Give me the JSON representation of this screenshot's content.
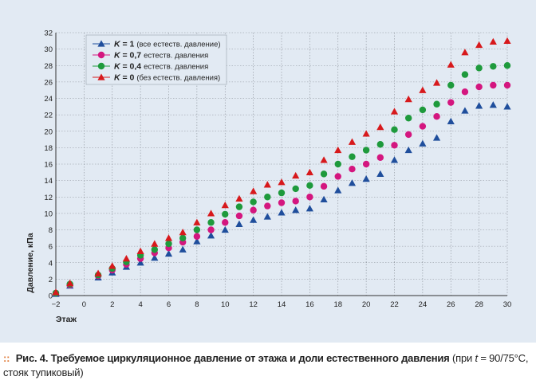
{
  "chart_data": {
    "type": "scatter",
    "xlabel": "Этаж",
    "ylabel": "Давление, кПа",
    "xlim": [
      -2,
      30
    ],
    "ylim": [
      0,
      32
    ],
    "xticks": [
      "−2",
      "0",
      "2",
      "4",
      "6",
      "8",
      "10",
      "12",
      "14",
      "16",
      "18",
      "20",
      "22",
      "24",
      "26",
      "28",
      "30"
    ],
    "yticks": [
      "0",
      "2",
      "4",
      "6",
      "8",
      "10",
      "12",
      "14",
      "16",
      "18",
      "20",
      "22",
      "24",
      "26",
      "28",
      "30",
      "32"
    ],
    "grid": true,
    "legend_position": "top-left",
    "x": [
      -2,
      -1,
      1,
      2,
      3,
      4,
      5,
      6,
      7,
      8,
      9,
      10,
      11,
      12,
      13,
      14,
      15,
      16,
      17,
      18,
      19,
      20,
      21,
      22,
      23,
      24,
      25,
      26,
      27,
      28,
      29,
      30
    ],
    "series": [
      {
        "k": "K",
        "value": "= 1",
        "note": "(все естеств. давление)",
        "color": "#1f4e9c",
        "marker": "triangle",
        "values": [
          0.2,
          1.2,
          2.2,
          2.8,
          3.5,
          4.0,
          4.6,
          5.1,
          5.6,
          6.6,
          7.3,
          8.0,
          8.7,
          9.2,
          9.6,
          10.1,
          10.4,
          10.6,
          11.7,
          12.8,
          13.7,
          14.2,
          14.8,
          16.5,
          17.7,
          18.5,
          19.2,
          21.2,
          22.5,
          23.1,
          23.2,
          23.0
        ]
      },
      {
        "k": "K",
        "value": "= 0,7",
        "note": "естеств. давления",
        "color": "#d4167f",
        "marker": "circle",
        "values": [
          0.3,
          1.3,
          2.4,
          3.1,
          3.8,
          4.5,
          5.2,
          5.8,
          6.5,
          7.2,
          8.0,
          8.9,
          9.7,
          10.4,
          10.9,
          11.3,
          11.5,
          12.0,
          13.3,
          14.5,
          15.4,
          16.0,
          16.8,
          18.3,
          19.6,
          20.6,
          21.8,
          23.5,
          24.8,
          25.4,
          25.6,
          25.6
        ]
      },
      {
        "k": "K",
        "value": "= 0,4",
        "note": "естеств. давления",
        "color": "#1e9a3c",
        "marker": "circle",
        "values": [
          0.3,
          1.4,
          2.5,
          3.3,
          4.1,
          4.9,
          5.6,
          6.3,
          7.0,
          8.0,
          8.9,
          9.9,
          10.8,
          11.4,
          12.0,
          12.5,
          13.0,
          13.4,
          14.8,
          16.0,
          16.9,
          17.7,
          18.4,
          20.2,
          21.6,
          22.6,
          23.3,
          25.6,
          26.9,
          27.7,
          27.9,
          28.0
        ]
      },
      {
        "k": "K",
        "value": "= 0",
        "note": "(без естеств. давления)",
        "color": "#d7191c",
        "marker": "triangle",
        "values": [
          0.4,
          1.5,
          2.7,
          3.6,
          4.5,
          5.4,
          6.3,
          7.0,
          7.7,
          8.9,
          10.0,
          11.0,
          11.8,
          12.7,
          13.5,
          13.8,
          14.6,
          15.0,
          16.5,
          17.7,
          18.7,
          19.7,
          20.5,
          22.4,
          23.9,
          25.0,
          25.9,
          28.1,
          29.6,
          30.5,
          30.9,
          31.0
        ]
      }
    ]
  },
  "caption": {
    "fig_label": "Рис. 4.",
    "title": "Требуемое циркуляционное давление от этажа и доли естественного давления",
    "paren_open": "(при",
    "t_var": "t",
    "rest": "= 90/75°C, стояк тупиковый)"
  }
}
